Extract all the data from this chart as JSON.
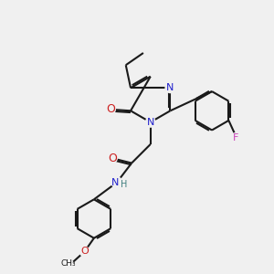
{
  "bg_color": "#f0f0f0",
  "bond_color": "#1a1a1a",
  "N_color": "#2020cc",
  "O_color": "#cc2020",
  "F_color": "#cc44bb",
  "H_color": "#408080",
  "lw": 1.5,
  "dbo": 0.06,
  "xlim": [
    0,
    10
  ],
  "ylim": [
    0,
    10
  ]
}
